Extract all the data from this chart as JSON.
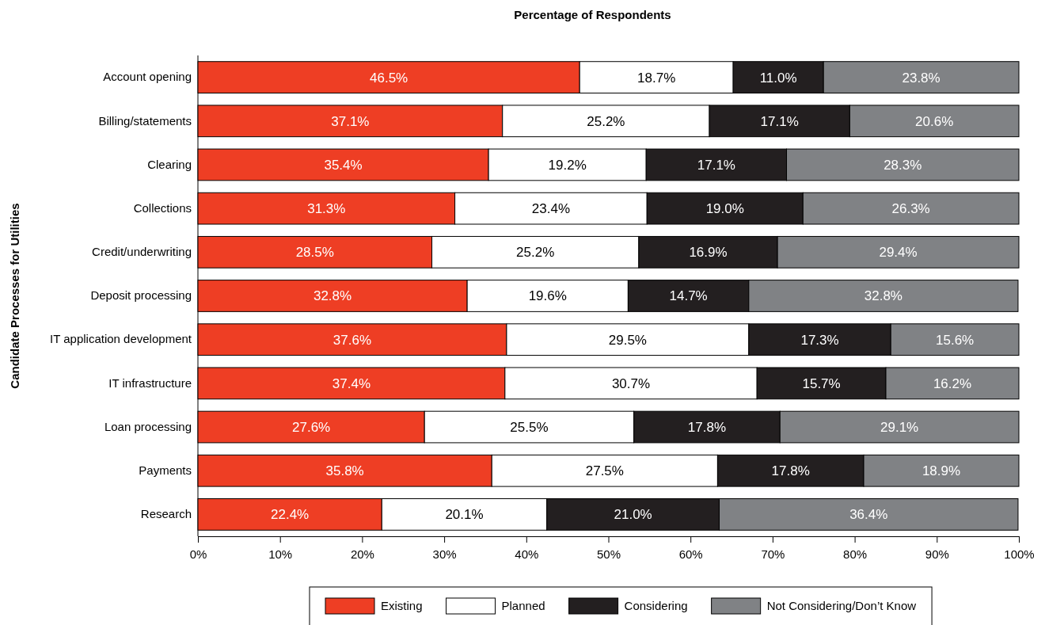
{
  "chart_data": {
    "type": "bar",
    "orientation": "horizontal",
    "stacked": true,
    "title": "Percentage of Respondents",
    "ylabel": "Candidate Processes for Utilities",
    "categories": [
      "Account opening",
      "Billing/statements",
      "Clearing",
      "Collections",
      "Credit/underwriting",
      "Deposit processing",
      "IT application development",
      "IT infrastructure",
      "Loan processing",
      "Payments",
      "Research"
    ],
    "xlim": [
      0,
      100
    ],
    "xticks": [
      {
        "value": 0,
        "label": "0%"
      },
      {
        "value": 10,
        "label": "10%"
      },
      {
        "value": 20,
        "label": "20%"
      },
      {
        "value": 30,
        "label": "30%"
      },
      {
        "value": 40,
        "label": "40%"
      },
      {
        "value": 50,
        "label": "50%"
      },
      {
        "value": 60,
        "label": "60%"
      },
      {
        "value": 70,
        "label": "70%"
      },
      {
        "value": 80,
        "label": "80%"
      },
      {
        "value": 90,
        "label": "90%"
      },
      {
        "value": 100,
        "label": "100%"
      }
    ],
    "legend": "bottom",
    "grid": false,
    "series": [
      {
        "name": "Existing",
        "color": "#ee3e24",
        "values": [
          46.5,
          37.1,
          35.4,
          31.3,
          28.5,
          32.8,
          37.6,
          37.4,
          27.6,
          35.8,
          22.4
        ],
        "value_labels": [
          "46.5%",
          "37.1%",
          "35.4%",
          "31.3%",
          "28.5%",
          "32.8%",
          "37.6%",
          "37.4%",
          "27.6%",
          "35.8%",
          "22.4%"
        ]
      },
      {
        "name": "Planned",
        "color": "#ffffff",
        "values": [
          18.7,
          25.2,
          19.2,
          23.4,
          25.2,
          19.6,
          29.5,
          30.7,
          25.5,
          27.5,
          20.1
        ],
        "value_labels": [
          "18.7%",
          "25.2%",
          "19.2%",
          "23.4%",
          "25.2%",
          "19.6%",
          "29.5%",
          "30.7%",
          "25.5%",
          "27.5%",
          "20.1%"
        ]
      },
      {
        "name": "Considering",
        "color": "#231f20",
        "values": [
          11.0,
          17.1,
          17.1,
          19.0,
          16.9,
          14.7,
          17.3,
          15.7,
          17.8,
          17.8,
          21.0
        ],
        "value_labels": [
          "11.0%",
          "17.1%",
          "17.1%",
          "19.0%",
          "16.9%",
          "14.7%",
          "17.3%",
          "15.7%",
          "17.8%",
          "17.8%",
          "21.0%"
        ]
      },
      {
        "name": "Not Considering/Don’t Know",
        "color": "#808285",
        "values": [
          23.8,
          20.6,
          28.3,
          26.3,
          29.4,
          32.8,
          15.6,
          16.2,
          29.1,
          18.9,
          36.4
        ],
        "value_labels": [
          "23.8%",
          "20.6%",
          "28.3%",
          "26.3%",
          "29.4%",
          "32.8%",
          "15.6%",
          "16.2%",
          "29.1%",
          "18.9%",
          "36.4%"
        ]
      }
    ]
  }
}
